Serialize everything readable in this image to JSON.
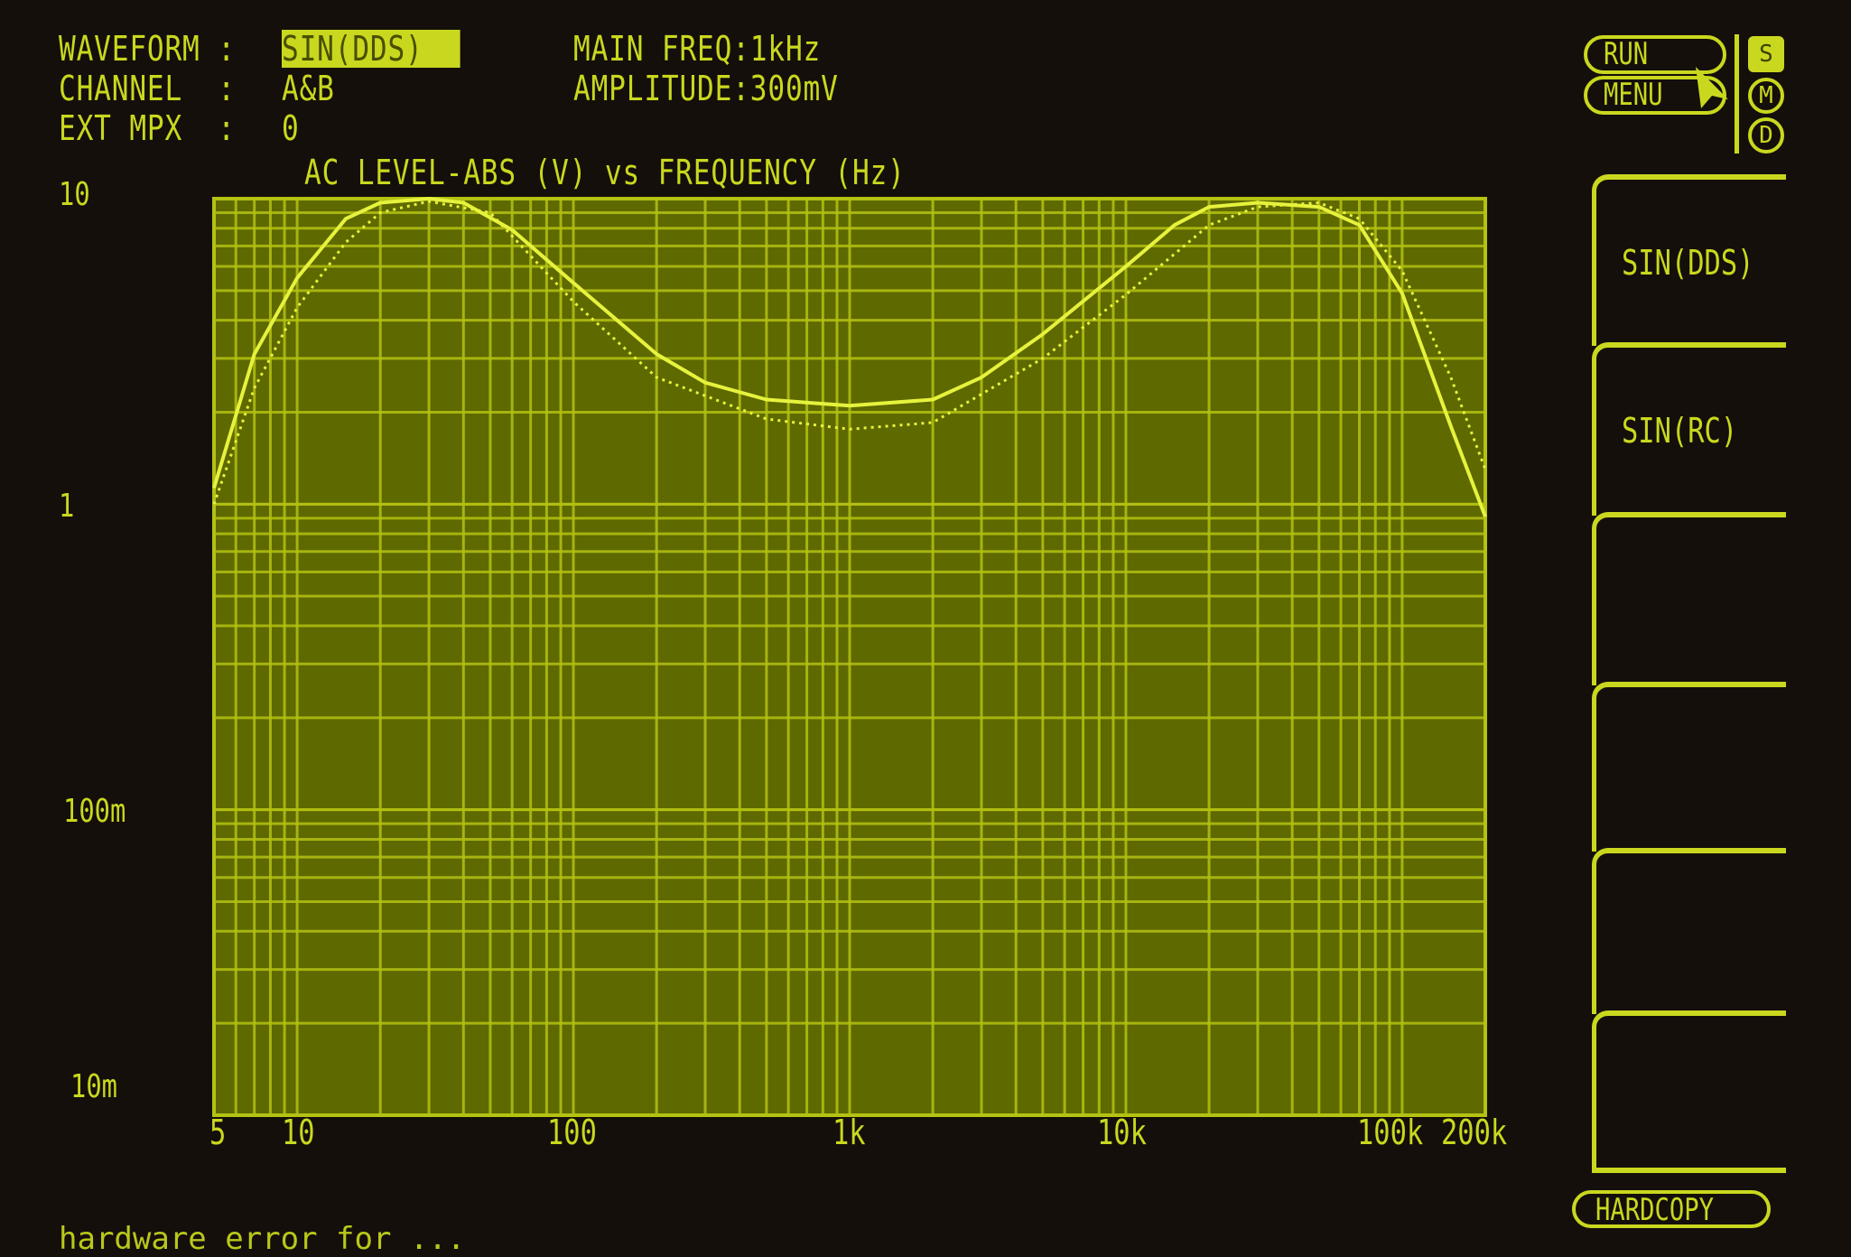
{
  "header": {
    "waveform_label": "WAVEFORM :",
    "waveform_value": "SIN(DDS)",
    "channel_label": "CHANNEL  :",
    "channel_value": "A&B",
    "ext_mpx_label": "EXT MPX  :",
    "ext_mpx_value": "0",
    "main_freq": "MAIN FREQ:1kHz",
    "amplitude": "AMPLITUDE:300mV"
  },
  "controls": {
    "run_label": "RUN",
    "menu_label": "MENU",
    "modes": [
      "S",
      "M",
      "D"
    ],
    "active_mode": "S",
    "hardcopy_label": "HARDCOPY"
  },
  "softkeys": [
    {
      "label": "SIN(DDS)"
    },
    {
      "label": "SIN(RC)"
    },
    {
      "label": ""
    },
    {
      "label": ""
    },
    {
      "label": ""
    },
    {
      "label": ""
    }
  ],
  "status_message": "hardware error for ...",
  "colors": {
    "background": "#140f0b",
    "text": "#c9d81e",
    "plot_background": "#5e6900",
    "grid": "#b4c212",
    "trace": "#e6f23c"
  },
  "chart_data": {
    "type": "line",
    "title": "AC LEVEL-ABS (V) vs FREQUENCY (Hz)",
    "x_scale": "log",
    "y_scale": "log",
    "xlim": [
      5,
      200000
    ],
    "ylim": [
      0.01,
      10
    ],
    "x_tick_labels": [
      {
        "value": 5,
        "label": "5"
      },
      {
        "value": 10,
        "label": "10"
      },
      {
        "value": 100,
        "label": "100"
      },
      {
        "value": 1000,
        "label": "1k"
      },
      {
        "value": 10000,
        "label": "10k"
      },
      {
        "value": 100000,
        "label": "100k"
      },
      {
        "value": 200000,
        "label": "200k"
      }
    ],
    "y_tick_labels": [
      {
        "value": 10,
        "label": "10"
      },
      {
        "value": 1,
        "label": "1"
      },
      {
        "value": 0.1,
        "label": "100m"
      },
      {
        "value": 0.01,
        "label": "10m"
      }
    ],
    "grid": true,
    "series": [
      {
        "style": "solid",
        "x": [
          5,
          7,
          10,
          15,
          20,
          30,
          40,
          60,
          100,
          200,
          300,
          500,
          1000,
          2000,
          3000,
          5000,
          10000,
          15000,
          20000,
          30000,
          50000,
          70000,
          100000,
          150000,
          200000
        ],
        "y": [
          1.13,
          3.1,
          5.5,
          8.6,
          9.7,
          10,
          9.7,
          7.9,
          5.3,
          3.1,
          2.5,
          2.2,
          2.1,
          2.2,
          2.6,
          3.6,
          6.0,
          8.2,
          9.4,
          9.7,
          9.4,
          8.2,
          4.9,
          1.8,
          0.91
        ]
      },
      {
        "style": "dotted",
        "x": [
          5,
          7,
          10,
          15,
          20,
          30,
          50,
          100,
          200,
          500,
          1000,
          2000,
          5000,
          10000,
          20000,
          30000,
          50000,
          70000,
          100000,
          150000,
          200000
        ],
        "y": [
          1.0,
          2.4,
          4.4,
          7.2,
          9.0,
          9.8,
          9.0,
          4.6,
          2.6,
          1.9,
          1.76,
          1.85,
          3.0,
          4.85,
          8.2,
          9.4,
          9.7,
          8.6,
          5.8,
          2.6,
          1.3
        ]
      }
    ]
  }
}
